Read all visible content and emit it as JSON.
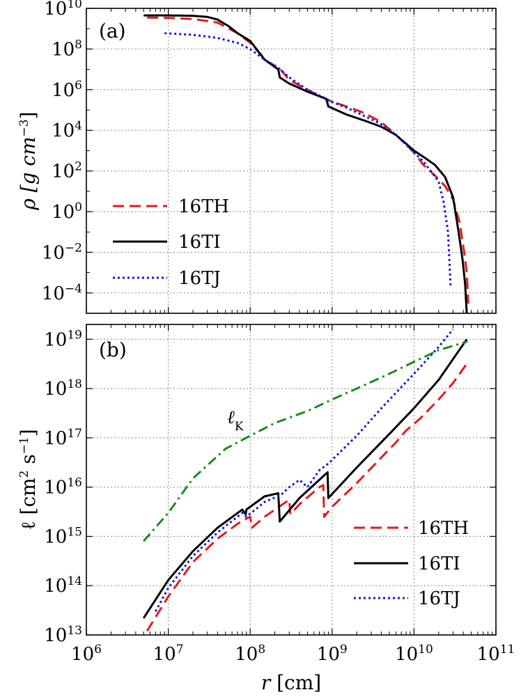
{
  "chart_data": [
    {
      "panel": "(a)",
      "type": "line",
      "xscale": "log",
      "yscale": "log",
      "xlim": [
        1000000.0,
        100000000000.0
      ],
      "ylim": [
        1e-05,
        10000000000.0
      ],
      "xticks": [
        {
          "mant": "10",
          "exp": "6"
        },
        {
          "mant": "10",
          "exp": "7"
        },
        {
          "mant": "10",
          "exp": "8"
        },
        {
          "mant": "10",
          "exp": "9"
        },
        {
          "mant": "10",
          "exp": "10"
        },
        {
          "mant": "10",
          "exp": "11"
        }
      ],
      "yticks": [
        {
          "mant": "10",
          "exp": "−4"
        },
        {
          "mant": "10",
          "exp": "−2"
        },
        {
          "mant": "10",
          "exp": "0"
        },
        {
          "mant": "10",
          "exp": "2"
        },
        {
          "mant": "10",
          "exp": "4"
        },
        {
          "mant": "10",
          "exp": "6"
        },
        {
          "mant": "10",
          "exp": "8"
        },
        {
          "mant": "10",
          "exp": "10"
        }
      ],
      "ylabel": {
        "prefix": "ρ [g cm",
        "exp": "−3",
        "suffix": "]"
      },
      "grid": true,
      "legend_position": "center-left",
      "series": [
        {
          "name": "16TH",
          "color": "#e41a1c",
          "style": "dashed",
          "x": [
            5500000.0,
            10000000.0,
            20000000.0,
            40000000.0,
            70000000.0,
            100000000.0,
            160000000.0,
            230000000.0,
            300000000.0,
            500000000.0,
            700000000.0,
            900000000.0,
            1500000000.0,
            2500000000.0,
            4000000000.0,
            6000000000.0,
            8000000000.0,
            10000000000.0,
            13000000000.0,
            18000000000.0,
            24000000000.0,
            30000000000.0,
            36000000000.0,
            41000000000.0,
            44000000000.0,
            46000000000.0
          ],
          "y": [
            3500000000.0,
            3400000000.0,
            3000000000.0,
            2000000000.0,
            600000000.0,
            200000000.0,
            25000000.0,
            11000000.0,
            3000000.0,
            1000000.0,
            500000.0,
            300000.0,
            150000.0,
            70000.0,
            25000.0,
            6000.0,
            2000.0,
            800,
            200,
            60,
            18,
            4,
            0.3,
            0.01,
            0.001,
            3e-05
          ]
        },
        {
          "name": "16TI",
          "color": "#000000",
          "style": "solid",
          "x": [
            5000000.0,
            10000000.0,
            20000000.0,
            30000000.0,
            40000000.0,
            55000000.0,
            70000000.0,
            100000000.0,
            150000000.0,
            220000000.0,
            230000000.0,
            300000000.0,
            500000000.0,
            850000000.0,
            900000000.0,
            1500000000.0,
            2500000000.0,
            4000000000.0,
            6000000000.0,
            8000000000.0,
            10000000000.0,
            13000000000.0,
            18000000000.0,
            24000000000.0,
            30000000000.0,
            35000000000.0,
            39000000000.0,
            42000000000.0,
            44000000000.0
          ],
          "y": [
            4500000000.0,
            4500000000.0,
            4300000000.0,
            3800000000.0,
            2800000000.0,
            1300000000.0,
            600000000.0,
            250000000.0,
            30000000.0,
            10000000.0,
            4000000.0,
            2000000.0,
            800000.0,
            350000.0,
            150000.0,
            60000.0,
            30000.0,
            15000.0,
            6000.0,
            2200.0,
            1000.0,
            500,
            200,
            50,
            5,
            0.1,
            0.005,
            0.0003,
            1e-05
          ]
        },
        {
          "name": "16TJ",
          "color": "#0a1bdc",
          "style": "dotted",
          "x": [
            9000000.0,
            20000000.0,
            40000000.0,
            70000000.0,
            100000000.0,
            150000000.0,
            220000000.0,
            300000000.0,
            500000000.0,
            800000000.0,
            1000000000.0,
            1500000000.0,
            2500000000.0,
            4000000000.0,
            6000000000.0,
            8000000000.0,
            10000000000.0,
            13000000000.0,
            16000000000.0,
            20000000000.0,
            23000000000.0,
            26000000000.0,
            28000000000.0
          ],
          "y": [
            600000000.0,
            500000000.0,
            350000000.0,
            200000000.0,
            100000000.0,
            30000000.0,
            12000000.0,
            4000000.0,
            1000000.0,
            400000.0,
            250000.0,
            130000.0,
            50000.0,
            20000.0,
            6000.0,
            2000.0,
            800,
            300,
            100,
            30,
            3,
            0.1,
            0.0002
          ]
        }
      ]
    },
    {
      "panel": "(b)",
      "type": "line",
      "xscale": "log",
      "yscale": "log",
      "xlim": [
        1000000.0,
        100000000000.0
      ],
      "ylim": [
        10000000000000.0,
        2e+19
      ],
      "xlabel": {
        "var": "r",
        "suffix": " [cm]"
      },
      "xticks": [
        {
          "mant": "10",
          "exp": "6"
        },
        {
          "mant": "10",
          "exp": "7"
        },
        {
          "mant": "10",
          "exp": "8"
        },
        {
          "mant": "10",
          "exp": "9"
        },
        {
          "mant": "10",
          "exp": "10"
        },
        {
          "mant": "10",
          "exp": "11"
        }
      ],
      "yticks": [
        {
          "mant": "10",
          "exp": "13"
        },
        {
          "mant": "10",
          "exp": "14"
        },
        {
          "mant": "10",
          "exp": "15"
        },
        {
          "mant": "10",
          "exp": "16"
        },
        {
          "mant": "10",
          "exp": "17"
        },
        {
          "mant": "10",
          "exp": "18"
        },
        {
          "mant": "10",
          "exp": "19"
        }
      ],
      "ylabel": {
        "prefix": "ℓ [cm",
        "exp1": "2",
        "mid": " s",
        "exp2": "−1",
        "suffix": "]"
      },
      "grid": true,
      "legend_position": "lower-right",
      "annotation": {
        "main": "ℓ",
        "sub": "K"
      },
      "series": [
        {
          "name": "16TH",
          "color": "#e41a1c",
          "style": "dashed",
          "x": [
            5500000.0,
            10000000.0,
            20000000.0,
            40000000.0,
            70000000.0,
            90000000.0,
            100000000.0,
            105000000.0,
            150000000.0,
            250000000.0,
            300000000.0,
            310000000.0,
            400000000.0,
            600000000.0,
            700000000.0,
            780000000.0,
            800000000.0,
            1000000000.0,
            2000000000.0,
            4000000000.0,
            6000000000.0,
            8000000000.0,
            12000000000.0,
            20000000000.0,
            30000000000.0,
            46000000000.0
          ],
          "y": [
            12000000000000.0,
            60000000000000.0,
            300000000000000.0,
            900000000000000.0,
            1800000000000000.0,
            2300000000000000.0,
            2500000000000000.0,
            1500000000000000.0,
            2500000000000000.0,
            4500000000000000.0,
            5500000000000000.0,
            2800000000000000.0,
            4500000000000000.0,
            8000000000000000.0,
            1e+16,
            1.1e+16,
            2500000000000000.0,
            4000000000000000.0,
            1.2e+16,
            4e+16,
            8e+16,
            1.4e+17,
            2.5e+17,
            6e+17,
            1.3e+18,
            3.5e+18
          ]
        },
        {
          "name": "16TI",
          "color": "#000000",
          "style": "solid",
          "x": [
            5000000.0,
            10000000.0,
            20000000.0,
            40000000.0,
            80000000.0,
            88000000.0,
            90000000.0,
            150000000.0,
            220000000.0,
            230000000.0,
            400000000.0,
            880000000.0,
            900000000.0,
            2000000000.0,
            5000000000.0,
            10000000000.0,
            20000000000.0,
            44000000000.0
          ],
          "y": [
            22000000000000.0,
            130000000000000.0,
            500000000000000.0,
            1500000000000000.0,
            3500000000000000.0,
            2800000000000000.0,
            3500000000000000.0,
            6500000000000000.0,
            7500000000000000.0,
            2000000000000000.0,
            6000000000000000.0,
            2e+16,
            6000000000000000.0,
            2.5e+16,
            1.2e+17,
            4e+17,
            1.5e+18,
            1e+19
          ]
        },
        {
          "name": "16TJ",
          "color": "#0a1bdc",
          "style": "dotted",
          "x": [
            7000000.0,
            10000000.0,
            20000000.0,
            40000000.0,
            80000000.0,
            90000000.0,
            150000000.0,
            240000000.0,
            300000000.0,
            400000000.0,
            500000000.0,
            700000000.0,
            900000000.0,
            2000000000.0,
            4000000000.0,
            10000000000.0,
            20000000000.0,
            30000000000.0
          ],
          "y": [
            30000000000000.0,
            90000000000000.0,
            400000000000000.0,
            1200000000000000.0,
            3000000000000000.0,
            2500000000000000.0,
            5000000000000000.0,
            7000000000000000.0,
            1e+16,
            1.4e+16,
            1e+16,
            2.2e+16,
            3e+16,
            1.1e+17,
            4e+17,
            2e+18,
            7e+18,
            1.6e+19
          ]
        },
        {
          "name": "ℓK",
          "color": "#1b8a1b",
          "style": "dashdot",
          "in_legend": false,
          "x": [
            5000000.0,
            10000000.0,
            20000000.0,
            50000000.0,
            100000000.0,
            200000000.0,
            500000000.0,
            1000000000.0,
            2000000000.0,
            5000000000.0,
            10000000000.0,
            20000000000.0,
            45000000000.0
          ],
          "y": [
            800000000000000.0,
            3000000000000000.0,
            1.5e+16,
            6e+16,
            1.1e+17,
            2e+17,
            3.5e+17,
            6e+17,
            1e+18,
            2e+18,
            3.5e+18,
            6e+18,
            9e+18
          ]
        }
      ]
    }
  ]
}
